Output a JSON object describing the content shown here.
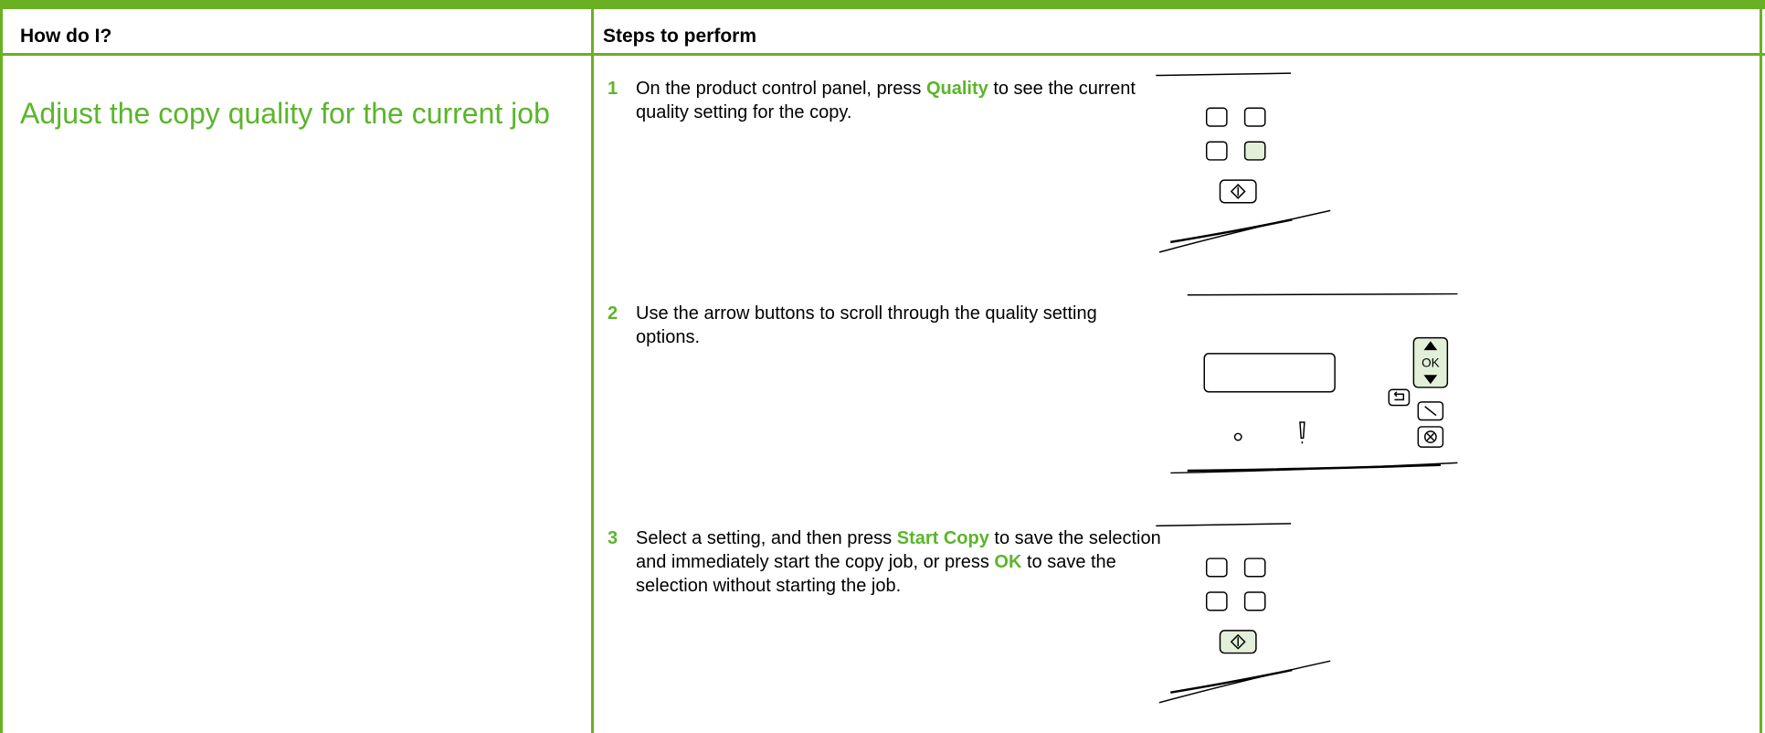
{
  "header": {
    "columns": [
      "How do I?",
      "Steps to perform"
    ]
  },
  "rows": [
    {
      "task": "Adjust the copy quality for the current job",
      "steps": [
        {
          "number": "1",
          "parts": [
            {
              "text": "On the product control panel, press "
            },
            {
              "text": "Quality",
              "emphasis": true
            },
            {
              "text": " to see the current quality setting for the copy."
            }
          ]
        },
        {
          "number": "2",
          "parts": [
            {
              "text": "Use the arrow buttons to scroll through the quality setting options."
            }
          ]
        },
        {
          "number": "3",
          "parts": [
            {
              "text": "Select a setting, and then press "
            },
            {
              "text": "Start Copy",
              "emphasis": true
            },
            {
              "text": " to save the selection and immediately start the copy job, or press "
            },
            {
              "text": "OK",
              "emphasis": true
            },
            {
              "text": " to save the selection without starting the job."
            }
          ]
        }
      ],
      "panel_label": "OK"
    }
  ]
}
